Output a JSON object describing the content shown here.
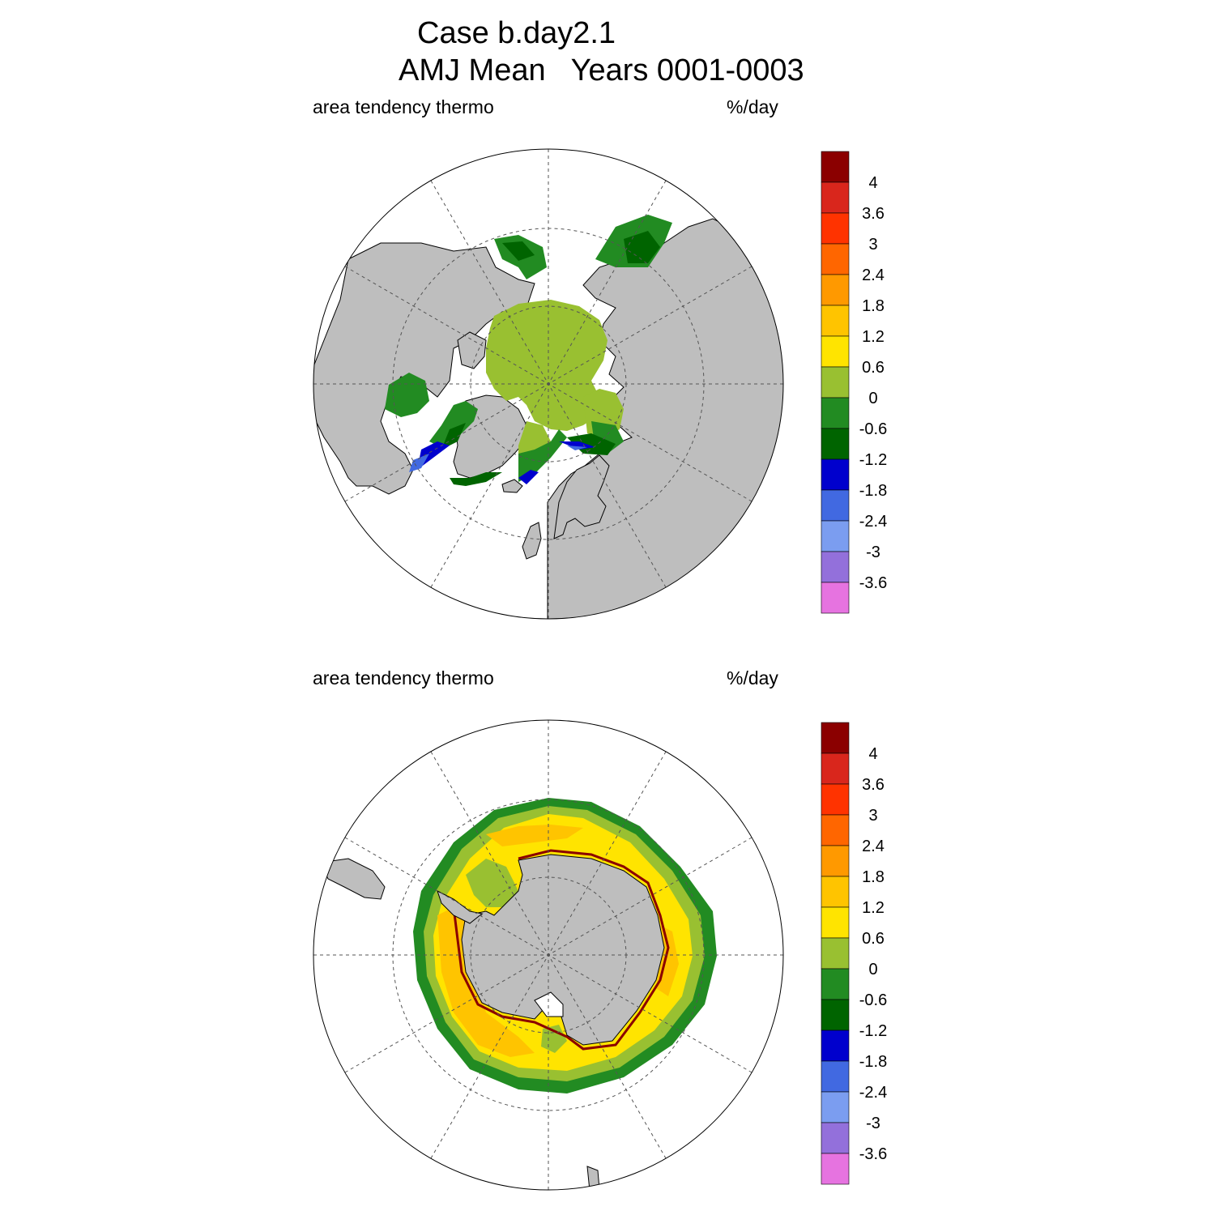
{
  "title": {
    "line1": "Case b.day2.1",
    "line2": "AMJ Mean   Years 0001-0003"
  },
  "colors": {
    "land": "#bebebe",
    "ocean": "#ffffff",
    "grid": "#555555",
    "coast": "#000000"
  },
  "colorbar": {
    "colors": [
      "#8b0000",
      "#d9261c",
      "#ff3300",
      "#ff6600",
      "#ff9900",
      "#ffc400",
      "#ffe400",
      "#99c031",
      "#228b22",
      "#006400",
      "#0000cd",
      "#4169e1",
      "#7b9df0",
      "#9370db",
      "#e673e0"
    ],
    "labels": [
      "4",
      "3.6",
      "3",
      "2.4",
      "1.8",
      "1.2",
      "0.6",
      "0",
      "-0.6",
      "-1.2",
      "-1.8",
      "-2.4",
      "-3",
      "-3.6"
    ]
  },
  "panels": [
    {
      "id": "nh",
      "field_name": "area tendency thermo",
      "units": "%/day",
      "hemisphere": "north"
    },
    {
      "id": "sh",
      "field_name": "area tendency thermo",
      "units": "%/day",
      "hemisphere": "south"
    }
  ]
}
